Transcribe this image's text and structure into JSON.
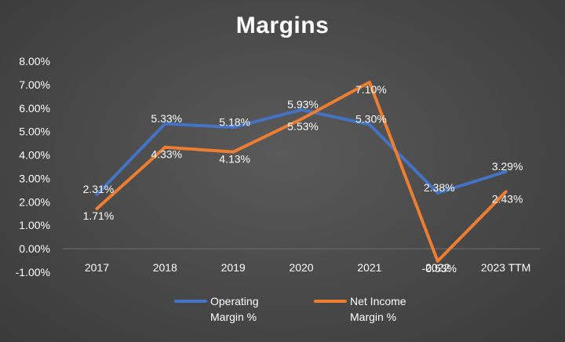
{
  "chart_data": {
    "type": "line",
    "title": "Margins",
    "categories": [
      "2017",
      "2018",
      "2019",
      "2020",
      "2021",
      "2022",
      "2023 TTM"
    ],
    "y_ticks": [
      "8.00%",
      "7.00%",
      "6.00%",
      "5.00%",
      "4.00%",
      "3.00%",
      "2.00%",
      "1.00%",
      "0.00%",
      "-1.00%"
    ],
    "ylim": [
      -1,
      8
    ],
    "legend_position": "bottom",
    "series": [
      {
        "name": "Operating Margin %",
        "color": "#4472C4",
        "values": [
          2.31,
          5.33,
          5.18,
          5.93,
          5.3,
          2.38,
          3.29
        ],
        "labels": [
          "2.31%",
          "5.33%",
          "5.18%",
          "5.93%",
          "5.30%",
          "2.38%",
          "3.29%"
        ]
      },
      {
        "name": "Net Income Margin %",
        "color": "#ED7D31",
        "values": [
          1.71,
          4.33,
          4.13,
          5.53,
          7.1,
          -0.53,
          2.43
        ],
        "labels": [
          "1.71%",
          "4.33%",
          "4.13%",
          "5.53%",
          "7.10%",
          "-0.53%",
          "2.43%"
        ]
      }
    ]
  },
  "legend": {
    "items": [
      {
        "line1": "Operating",
        "line2": "Margin %"
      },
      {
        "line1": "Net Income",
        "line2": "Margin %"
      }
    ]
  }
}
